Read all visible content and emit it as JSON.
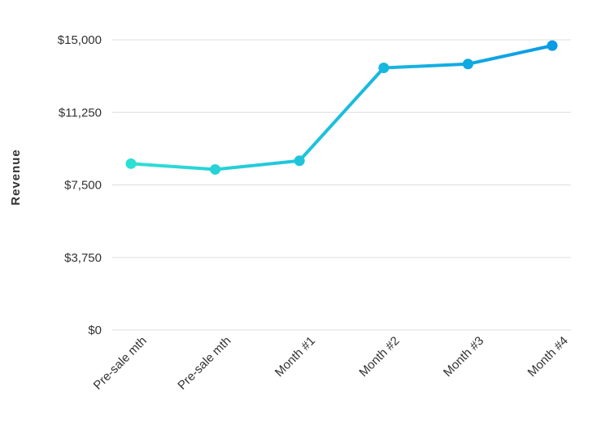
{
  "chart_data": {
    "type": "line",
    "title": "",
    "xlabel": "",
    "ylabel": "Revenue",
    "categories": [
      "Pre-sale mth",
      "Pre-sale mth",
      "Month #1",
      "Month #2",
      "Month #3",
      "Month #4"
    ],
    "series": [
      {
        "values": [
          8600,
          8300,
          8750,
          13550,
          13750,
          14700
        ]
      }
    ],
    "ylim": [
      0,
      15000
    ],
    "yticks": [
      0,
      3750,
      7500,
      11250,
      15000
    ],
    "ytick_labels": [
      "$0",
      "$3,750",
      "$7,500",
      "$11,250",
      "$15,000"
    ],
    "grid": "horizontal",
    "colors": {
      "line_start": "#2de0d4",
      "line_end": "#0a9be6",
      "grid": "#dddddd",
      "text": "#333333"
    }
  }
}
